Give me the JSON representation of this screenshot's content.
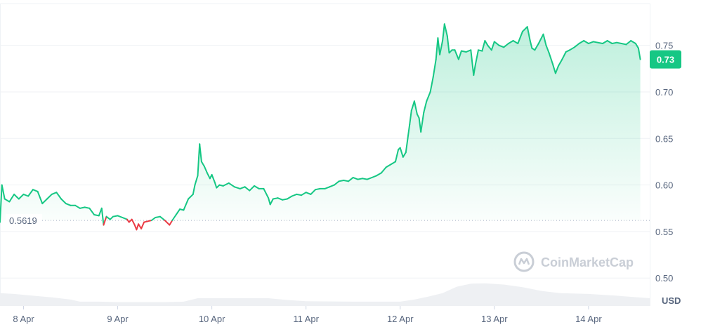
{
  "chart_data": {
    "type": "area",
    "title": "",
    "xlabel": "",
    "ylabel": "",
    "unit_label": "USD",
    "x_ticks": [
      "8 Apr",
      "9 Apr",
      "10 Apr",
      "11 Apr",
      "12 Apr",
      "13 Apr",
      "14 Apr"
    ],
    "x_range_days": [
      7.75,
      14.65
    ],
    "y_ticks": [
      0.5,
      0.55,
      0.6,
      0.65,
      0.7,
      0.75
    ],
    "ylim": [
      0.47,
      0.795
    ],
    "reference_price": 0.5619,
    "reference_label": "0.5619",
    "current_price_label": "0.73",
    "colors": {
      "up": "#16c784",
      "down": "#ea3943",
      "area_top": "#c8f0de",
      "volume": "#eef0f3",
      "grid": "#eff2f5"
    },
    "watermark": "CoinMarketCap",
    "series": [
      {
        "values": [
          [
            7.75,
            0.56
          ],
          [
            7.77,
            0.6
          ],
          [
            7.8,
            0.585
          ],
          [
            7.85,
            0.582
          ],
          [
            7.9,
            0.59
          ],
          [
            7.95,
            0.585
          ],
          [
            8.0,
            0.59
          ],
          [
            8.05,
            0.588
          ],
          [
            8.1,
            0.595
          ],
          [
            8.15,
            0.593
          ],
          [
            8.2,
            0.58
          ],
          [
            8.25,
            0.585
          ],
          [
            8.3,
            0.59
          ],
          [
            8.35,
            0.592
          ],
          [
            8.4,
            0.585
          ],
          [
            8.45,
            0.58
          ],
          [
            8.5,
            0.578
          ],
          [
            8.55,
            0.578
          ],
          [
            8.6,
            0.575
          ],
          [
            8.65,
            0.576
          ],
          [
            8.7,
            0.575
          ],
          [
            8.75,
            0.568
          ],
          [
            8.8,
            0.567
          ],
          [
            8.83,
            0.575
          ],
          [
            8.85,
            0.557
          ],
          [
            8.88,
            0.566
          ],
          [
            8.92,
            0.563
          ],
          [
            8.95,
            0.566
          ],
          [
            9.0,
            0.567
          ],
          [
            9.05,
            0.565
          ],
          [
            9.1,
            0.563
          ],
          [
            9.12,
            0.56
          ],
          [
            9.15,
            0.563
          ],
          [
            9.18,
            0.557
          ],
          [
            9.2,
            0.552
          ],
          [
            9.22,
            0.558
          ],
          [
            9.25,
            0.553
          ],
          [
            9.28,
            0.56
          ],
          [
            9.32,
            0.561
          ],
          [
            9.36,
            0.562
          ],
          [
            9.4,
            0.565
          ],
          [
            9.45,
            0.566
          ],
          [
            9.5,
            0.562
          ],
          [
            9.55,
            0.557
          ],
          [
            9.58,
            0.562
          ],
          [
            9.62,
            0.568
          ],
          [
            9.66,
            0.574
          ],
          [
            9.7,
            0.573
          ],
          [
            9.75,
            0.585
          ],
          [
            9.8,
            0.59
          ],
          [
            9.82,
            0.6
          ],
          [
            9.85,
            0.61
          ],
          [
            9.87,
            0.644
          ],
          [
            9.89,
            0.625
          ],
          [
            9.92,
            0.62
          ],
          [
            9.95,
            0.613
          ],
          [
            9.98,
            0.607
          ],
          [
            10.0,
            0.611
          ],
          [
            10.03,
            0.603
          ],
          [
            10.05,
            0.597
          ],
          [
            10.08,
            0.6
          ],
          [
            10.12,
            0.599
          ],
          [
            10.18,
            0.602
          ],
          [
            10.24,
            0.598
          ],
          [
            10.3,
            0.596
          ],
          [
            10.35,
            0.598
          ],
          [
            10.4,
            0.594
          ],
          [
            10.45,
            0.599
          ],
          [
            10.5,
            0.596
          ],
          [
            10.55,
            0.596
          ],
          [
            10.6,
            0.586
          ],
          [
            10.62,
            0.579
          ],
          [
            10.65,
            0.585
          ],
          [
            10.7,
            0.586
          ],
          [
            10.75,
            0.584
          ],
          [
            10.8,
            0.585
          ],
          [
            10.85,
            0.588
          ],
          [
            10.9,
            0.59
          ],
          [
            10.95,
            0.589
          ],
          [
            11.0,
            0.592
          ],
          [
            11.05,
            0.59
          ],
          [
            11.1,
            0.595
          ],
          [
            11.15,
            0.596
          ],
          [
            11.2,
            0.596
          ],
          [
            11.25,
            0.598
          ],
          [
            11.3,
            0.6
          ],
          [
            11.35,
            0.604
          ],
          [
            11.4,
            0.605
          ],
          [
            11.45,
            0.604
          ],
          [
            11.5,
            0.608
          ],
          [
            11.55,
            0.606
          ],
          [
            11.6,
            0.607
          ],
          [
            11.65,
            0.606
          ],
          [
            11.7,
            0.608
          ],
          [
            11.75,
            0.61
          ],
          [
            11.8,
            0.613
          ],
          [
            11.85,
            0.619
          ],
          [
            11.9,
            0.622
          ],
          [
            11.95,
            0.625
          ],
          [
            11.98,
            0.638
          ],
          [
            12.0,
            0.64
          ],
          [
            12.03,
            0.63
          ],
          [
            12.06,
            0.635
          ],
          [
            12.08,
            0.65
          ],
          [
            12.1,
            0.665
          ],
          [
            12.12,
            0.68
          ],
          [
            12.15,
            0.69
          ],
          [
            12.18,
            0.676
          ],
          [
            12.2,
            0.672
          ],
          [
            12.22,
            0.657
          ],
          [
            12.25,
            0.678
          ],
          [
            12.28,
            0.69
          ],
          [
            12.32,
            0.7
          ],
          [
            12.35,
            0.716
          ],
          [
            12.38,
            0.735
          ],
          [
            12.4,
            0.758
          ],
          [
            12.42,
            0.74
          ],
          [
            12.45,
            0.755
          ],
          [
            12.47,
            0.773
          ],
          [
            12.5,
            0.76
          ],
          [
            12.52,
            0.742
          ],
          [
            12.55,
            0.745
          ],
          [
            12.58,
            0.745
          ],
          [
            12.62,
            0.735
          ],
          [
            12.65,
            0.744
          ],
          [
            12.7,
            0.743
          ],
          [
            12.75,
            0.745
          ],
          [
            12.78,
            0.718
          ],
          [
            12.8,
            0.73
          ],
          [
            12.83,
            0.745
          ],
          [
            12.87,
            0.744
          ],
          [
            12.9,
            0.755
          ],
          [
            12.93,
            0.75
          ],
          [
            12.97,
            0.745
          ],
          [
            13.0,
            0.754
          ],
          [
            13.05,
            0.75
          ],
          [
            13.1,
            0.748
          ],
          [
            13.15,
            0.752
          ],
          [
            13.2,
            0.755
          ],
          [
            13.25,
            0.752
          ],
          [
            13.3,
            0.765
          ],
          [
            13.35,
            0.77
          ],
          [
            13.38,
            0.755
          ],
          [
            13.4,
            0.747
          ],
          [
            13.43,
            0.745
          ],
          [
            13.47,
            0.752
          ],
          [
            13.52,
            0.762
          ],
          [
            13.55,
            0.75
          ],
          [
            13.58,
            0.742
          ],
          [
            13.62,
            0.73
          ],
          [
            13.65,
            0.72
          ],
          [
            13.68,
            0.728
          ],
          [
            13.72,
            0.735
          ],
          [
            13.76,
            0.743
          ],
          [
            13.8,
            0.745
          ],
          [
            13.85,
            0.748
          ],
          [
            13.9,
            0.752
          ],
          [
            13.95,
            0.755
          ],
          [
            14.0,
            0.752
          ],
          [
            14.05,
            0.754
          ],
          [
            14.1,
            0.753
          ],
          [
            14.15,
            0.752
          ],
          [
            14.2,
            0.755
          ],
          [
            14.25,
            0.752
          ],
          [
            14.3,
            0.753
          ],
          [
            14.35,
            0.752
          ],
          [
            14.4,
            0.751
          ],
          [
            14.45,
            0.755
          ],
          [
            14.5,
            0.752
          ],
          [
            14.53,
            0.747
          ],
          [
            14.55,
            0.735
          ]
        ]
      }
    ],
    "volume": [
      [
        7.75,
        0.3
      ],
      [
        7.9,
        0.28
      ],
      [
        8.1,
        0.24
      ],
      [
        8.3,
        0.2
      ],
      [
        8.5,
        0.15
      ],
      [
        8.6,
        0.1
      ],
      [
        8.8,
        0.1
      ],
      [
        9.0,
        0.09
      ],
      [
        9.5,
        0.09
      ],
      [
        9.7,
        0.1
      ],
      [
        9.85,
        0.18
      ],
      [
        10.0,
        0.18
      ],
      [
        10.6,
        0.18
      ],
      [
        10.8,
        0.14
      ],
      [
        11.0,
        0.11
      ],
      [
        11.5,
        0.1
      ],
      [
        12.0,
        0.1
      ],
      [
        12.15,
        0.15
      ],
      [
        12.3,
        0.22
      ],
      [
        12.45,
        0.3
      ],
      [
        12.6,
        0.45
      ],
      [
        12.75,
        0.52
      ],
      [
        12.9,
        0.53
      ],
      [
        13.1,
        0.5
      ],
      [
        13.3,
        0.44
      ],
      [
        13.5,
        0.35
      ],
      [
        13.7,
        0.3
      ],
      [
        14.0,
        0.28
      ],
      [
        14.3,
        0.24
      ],
      [
        14.65,
        0.18
      ]
    ]
  }
}
